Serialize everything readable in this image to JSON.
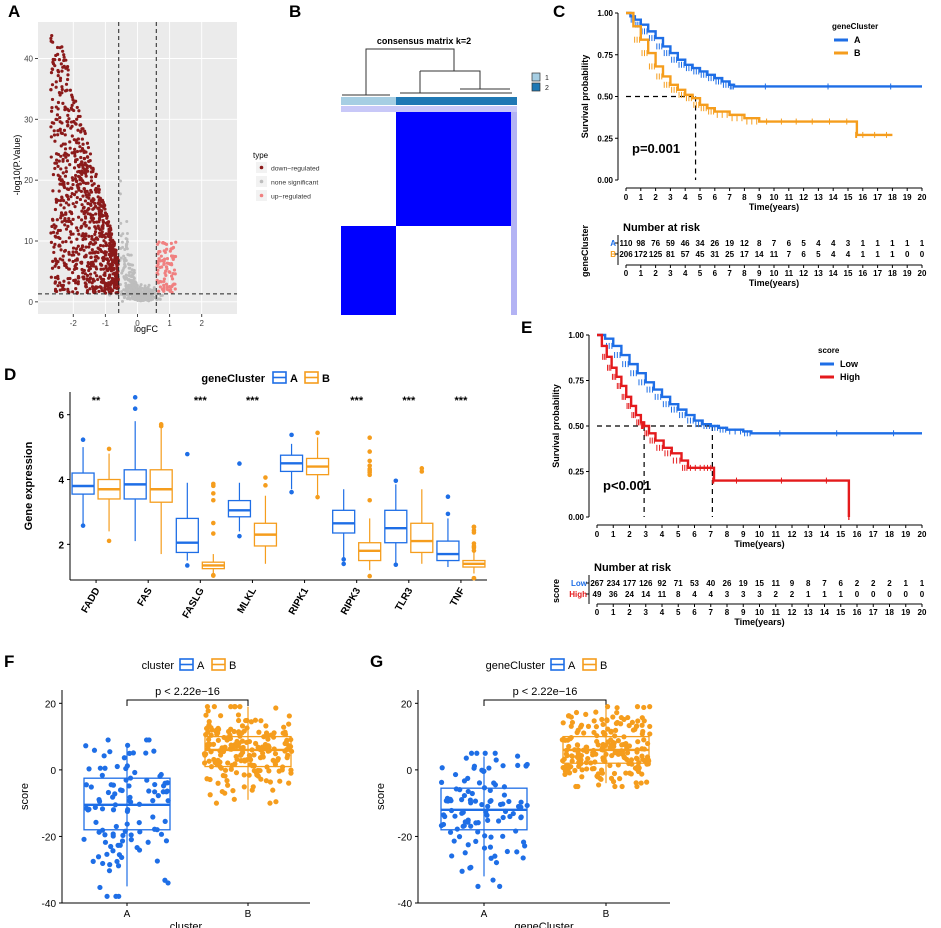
{
  "panels": {
    "A": {
      "letter": "A",
      "chart_data": {
        "type": "scatter",
        "xlabel": "logFC",
        "ylabel": "-log10(P.Value)",
        "xlim": [
          -3.1,
          3.1
        ],
        "ylim": [
          -2,
          46
        ],
        "xticks": [
          -2,
          -1,
          0,
          1,
          2
        ],
        "yticks": [
          0,
          10,
          20,
          30,
          40
        ],
        "vlines": [
          -0.585,
          0.585
        ],
        "hline": 1.3,
        "legend": {
          "title": "type",
          "items": [
            {
              "label": "down−regulated",
              "color": "#8b1a1a"
            },
            {
              "label": "none significant",
              "color": "#bdbdbd"
            },
            {
              "label": "up−regulated",
              "color": "#f08080"
            }
          ]
        }
      }
    },
    "B": {
      "letter": "B",
      "chart_data": {
        "type": "heatmap",
        "title": "consensus matrix k=2",
        "legend": [
          "1",
          "2"
        ],
        "colors": {
          "cluster1": "#a6cee3",
          "cluster2": "#1f78b4",
          "high": "#0000ff",
          "low": "#ffffff"
        },
        "cluster_sizes": [
          110,
          206
        ]
      }
    },
    "C": {
      "letter": "C",
      "chart_data": {
        "type": "line",
        "ylabel": "Survival probability",
        "xlabel": "Time(years)",
        "xlim": [
          0,
          20
        ],
        "ylim": [
          0,
          1
        ],
        "yticks": [
          "0.00",
          "0.25",
          "0.50",
          "0.75",
          "1.00"
        ],
        "xticks": [
          "0",
          "1",
          "2",
          "3",
          "4",
          "5",
          "6",
          "7",
          "8",
          "9",
          "10",
          "11",
          "12",
          "13",
          "14",
          "15",
          "16",
          "17",
          "18",
          "19",
          "20"
        ],
        "pvalue": "p=0.001",
        "median": {
          "x": 4.7,
          "y": 0.5
        },
        "legend_title": "geneCluster",
        "series": [
          {
            "name": "A",
            "color": "#1e6ee6",
            "points": [
              [
                0,
                1
              ],
              [
                0.3,
                0.98
              ],
              [
                0.6,
                0.96
              ],
              [
                1,
                0.93
              ],
              [
                1.5,
                0.89
              ],
              [
                2,
                0.85
              ],
              [
                2.5,
                0.8
              ],
              [
                3,
                0.76
              ],
              [
                3.5,
                0.72
              ],
              [
                4,
                0.69
              ],
              [
                4.5,
                0.67
              ],
              [
                5,
                0.65
              ],
              [
                5.5,
                0.63
              ],
              [
                6,
                0.61
              ],
              [
                6.5,
                0.59
              ],
              [
                7,
                0.57
              ],
              [
                7.3,
                0.56
              ],
              [
                20,
                0.56
              ]
            ]
          },
          {
            "name": "B",
            "color": "#f59d1d",
            "points": [
              [
                0,
                1
              ],
              [
                0.5,
                0.92
              ],
              [
                1,
                0.84
              ],
              [
                1.5,
                0.76
              ],
              [
                2,
                0.68
              ],
              [
                2.5,
                0.62
              ],
              [
                3,
                0.57
              ],
              [
                3.5,
                0.54
              ],
              [
                4,
                0.51
              ],
              [
                4.5,
                0.49
              ],
              [
                5,
                0.45
              ],
              [
                5.5,
                0.43
              ],
              [
                6,
                0.41
              ],
              [
                7,
                0.39
              ],
              [
                8,
                0.37
              ],
              [
                9,
                0.35
              ],
              [
                12,
                0.35
              ],
              [
                15.5,
                0.35
              ],
              [
                15.6,
                0.27
              ],
              [
                18,
                0.27
              ]
            ]
          }
        ],
        "risk_table": {
          "title": "Number at risk",
          "ylabel": "geneCluster",
          "xlabel": "Time(years)",
          "rows": [
            {
              "label": "A",
              "color": "#1e6ee6",
              "values": [
                "110",
                "98",
                "76",
                "59",
                "46",
                "34",
                "26",
                "19",
                "12",
                "8",
                "7",
                "6",
                "5",
                "4",
                "4",
                "3",
                "1",
                "1",
                "1",
                "1",
                "1"
              ]
            },
            {
              "label": "B",
              "color": "#f59d1d",
              "values": [
                "206",
                "172",
                "125",
                "81",
                "57",
                "45",
                "31",
                "25",
                "17",
                "14",
                "11",
                "7",
                "6",
                "5",
                "4",
                "4",
                "1",
                "1",
                "1",
                "0",
                "0"
              ]
            }
          ]
        }
      }
    },
    "D": {
      "letter": "D",
      "chart_data": {
        "type": "box",
        "legend_title": "geneCluster",
        "ylabel": "Gene expression",
        "ylim": [
          0.9,
          6.7
        ],
        "yticks": [
          2,
          4,
          6
        ],
        "categories": [
          "FADD",
          "FAS",
          "FASLG",
          "MLKL",
          "RIPK1",
          "RIPK3",
          "TLR3",
          "TNF"
        ],
        "significance": [
          "**",
          "",
          "***",
          "***",
          "",
          "***",
          "***",
          "***"
        ],
        "series": [
          {
            "name": "A",
            "color": "#1e6ee6",
            "boxes": [
              [
                2.6,
                3.55,
                3.8,
                4.2,
                5.0
              ],
              [
                2.1,
                3.4,
                3.85,
                4.3,
                5.8
              ],
              [
                1.5,
                1.75,
                2.05,
                2.8,
                3.9
              ],
              [
                2.4,
                2.85,
                3.05,
                3.35,
                3.9
              ],
              [
                3.7,
                4.25,
                4.5,
                4.75,
                5.1
              ],
              [
                1.6,
                2.35,
                2.65,
                3.05,
                3.7
              ],
              [
                1.4,
                2.05,
                2.5,
                3.05,
                3.85
              ],
              [
                1.3,
                1.5,
                1.7,
                2.1,
                2.8
              ]
            ]
          },
          {
            "name": "B",
            "color": "#f59d1d",
            "boxes": [
              [
                2.4,
                3.4,
                3.7,
                4.0,
                4.8
              ],
              [
                1.7,
                3.3,
                3.7,
                4.3,
                5.6
              ],
              [
                1.1,
                1.25,
                1.35,
                1.45,
                1.7
              ],
              [
                1.4,
                1.95,
                2.3,
                2.65,
                3.5
              ],
              [
                3.5,
                4.15,
                4.4,
                4.65,
                5.3
              ],
              [
                1.2,
                1.5,
                1.8,
                2.05,
                2.8
              ],
              [
                1.4,
                1.75,
                2.1,
                2.65,
                3.7
              ],
              [
                1.1,
                1.3,
                1.4,
                1.5,
                1.8
              ]
            ]
          }
        ]
      }
    },
    "E": {
      "letter": "E",
      "chart_data": {
        "type": "line",
        "ylabel": "Survival probability",
        "xlabel": "Time(years)",
        "xlim": [
          0,
          20
        ],
        "ylim": [
          0,
          1
        ],
        "yticks": [
          "0.00",
          "0.25",
          "0.50",
          "0.75",
          "1.00"
        ],
        "xticks": [
          "0",
          "1",
          "2",
          "3",
          "4",
          "5",
          "6",
          "7",
          "8",
          "9",
          "10",
          "11",
          "12",
          "13",
          "14",
          "15",
          "16",
          "17",
          "18",
          "19",
          "20"
        ],
        "pvalue": "p<0.001",
        "medians": [
          {
            "x": 2.9,
            "y": 0.5
          },
          {
            "x": 7.1,
            "y": 0.5
          }
        ],
        "legend_title": "score",
        "series": [
          {
            "name": "Low",
            "color": "#1e6ee6",
            "points": [
              [
                0,
                1
              ],
              [
                0.5,
                0.98
              ],
              [
                1,
                0.94
              ],
              [
                1.5,
                0.89
              ],
              [
                2,
                0.84
              ],
              [
                2.5,
                0.79
              ],
              [
                3,
                0.74
              ],
              [
                3.5,
                0.7
              ],
              [
                4,
                0.66
              ],
              [
                4.5,
                0.62
              ],
              [
                5,
                0.59
              ],
              [
                5.5,
                0.56
              ],
              [
                6,
                0.53
              ],
              [
                6.5,
                0.51
              ],
              [
                7,
                0.5
              ],
              [
                7.5,
                0.49
              ],
              [
                8,
                0.48
              ],
              [
                9,
                0.47
              ],
              [
                9.5,
                0.46
              ],
              [
                20,
                0.46
              ]
            ]
          },
          {
            "name": "High",
            "color": "#e41a1c",
            "points": [
              [
                0,
                1
              ],
              [
                0.3,
                0.94
              ],
              [
                0.6,
                0.88
              ],
              [
                0.9,
                0.82
              ],
              [
                1.2,
                0.77
              ],
              [
                1.5,
                0.72
              ],
              [
                1.8,
                0.66
              ],
              [
                2.1,
                0.61
              ],
              [
                2.4,
                0.56
              ],
              [
                2.7,
                0.52
              ],
              [
                2.9,
                0.5
              ],
              [
                3.2,
                0.46
              ],
              [
                3.6,
                0.42
              ],
              [
                4.1,
                0.38
              ],
              [
                4.6,
                0.35
              ],
              [
                5.2,
                0.31
              ],
              [
                5.6,
                0.27
              ],
              [
                6.5,
                0.27
              ],
              [
                7.1,
                0.27
              ],
              [
                7.2,
                0.2
              ],
              [
                15.5,
                0.2
              ],
              [
                15.5,
                0
              ]
            ]
          }
        ],
        "risk_table": {
          "title": "Number at risk",
          "ylabel": "score",
          "xlabel": "Time(years)",
          "rows": [
            {
              "label": "Low",
              "color": "#1e6ee6",
              "values": [
                "267",
                "234",
                "177",
                "126",
                "92",
                "71",
                "53",
                "40",
                "26",
                "19",
                "15",
                "11",
                "9",
                "8",
                "7",
                "6",
                "2",
                "2",
                "2",
                "1",
                "1"
              ]
            },
            {
              "label": "High",
              "color": "#e41a1c",
              "values": [
                "49",
                "36",
                "24",
                "14",
                "11",
                "8",
                "4",
                "4",
                "3",
                "3",
                "3",
                "2",
                "2",
                "1",
                "1",
                "1",
                "0",
                "0",
                "0",
                "0",
                "0"
              ]
            }
          ]
        }
      }
    },
    "F": {
      "letter": "F",
      "chart_data": {
        "type": "box",
        "legend_title": "cluster",
        "xlabel": "cluster",
        "ylabel": "score",
        "ylim": [
          -40,
          24
        ],
        "yticks": [
          -40,
          -20,
          0,
          20
        ],
        "categories": [
          "A",
          "B"
        ],
        "pvalue": "p < 2.22e−16",
        "series": [
          {
            "name": "A",
            "color": "#1e6ee6",
            "box": [
              -35,
              -18,
              -10.5,
              -2.5,
              8
            ]
          },
          {
            "name": "B",
            "color": "#f59d1d",
            "box": [
              -9,
              1,
              6,
              10,
              19
            ]
          }
        ]
      }
    },
    "G": {
      "letter": "G",
      "chart_data": {
        "type": "box",
        "legend_title": "geneCluster",
        "xlabel": "geneCluster",
        "ylabel": "score",
        "ylim": [
          -40,
          24
        ],
        "yticks": [
          -40,
          -20,
          0,
          20
        ],
        "categories": [
          "A",
          "B"
        ],
        "pvalue": "p < 2.22e−16",
        "series": [
          {
            "name": "A",
            "color": "#1e6ee6",
            "box": [
              -32,
              -18,
              -12,
              -5.5,
              4
            ]
          },
          {
            "name": "B",
            "color": "#f59d1d",
            "box": [
              -4,
              2,
              6,
              10,
              19
            ]
          }
        ]
      }
    }
  }
}
